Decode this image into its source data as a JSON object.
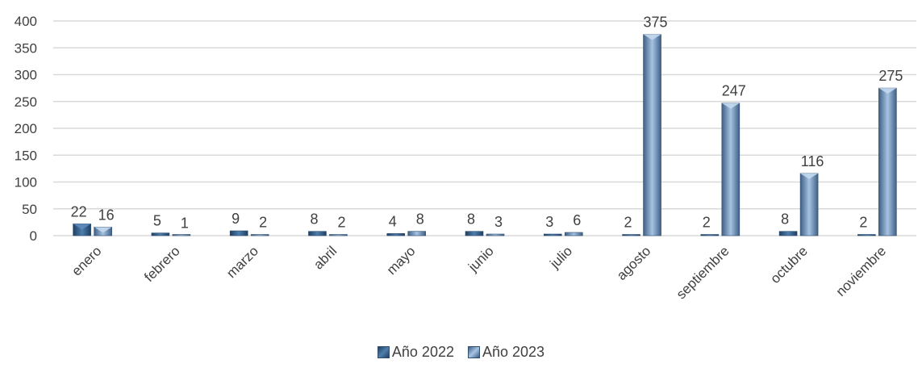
{
  "chart_data": {
    "type": "bar",
    "categories": [
      "enero",
      "febrero",
      "marzo",
      "abril",
      "mayo",
      "junio",
      "julio",
      "agosto",
      "septiembre",
      "octubre",
      "noviembre"
    ],
    "series": [
      {
        "name": "Año 2022",
        "values": [
          22,
          5,
          9,
          8,
          4,
          8,
          3,
          2,
          2,
          8,
          2
        ],
        "color": "#3b6896"
      },
      {
        "name": "Año 2023",
        "values": [
          16,
          1,
          2,
          2,
          8,
          3,
          6,
          375,
          247,
          116,
          275
        ],
        "color": "#7c9fc6"
      }
    ],
    "ylim": [
      0,
      400
    ],
    "yticks": [
      0,
      50,
      100,
      150,
      200,
      250,
      300,
      350,
      400
    ],
    "grid": true,
    "legend": "bottom",
    "title": "",
    "xlabel": "",
    "ylabel": ""
  }
}
